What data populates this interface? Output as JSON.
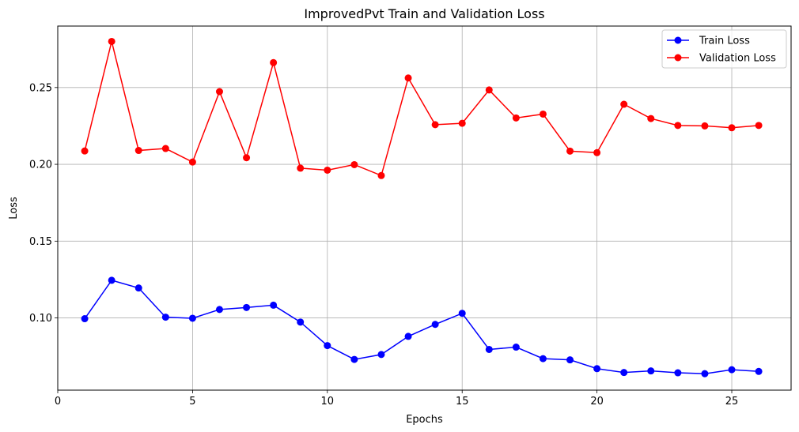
{
  "chart_data": {
    "type": "line",
    "title": "ImprovedPvt Train and Validation Loss",
    "xlabel": "Epochs",
    "ylabel": "Loss",
    "xlim": [
      0,
      27.2
    ],
    "ylim": [
      0.053,
      0.29
    ],
    "xticks": [
      0,
      5,
      10,
      15,
      20,
      25
    ],
    "yticks": [
      0.1,
      0.15,
      0.2,
      0.25
    ],
    "grid": true,
    "legend_position": "top-right",
    "x": [
      1,
      2,
      3,
      4,
      5,
      6,
      7,
      8,
      9,
      10,
      11,
      12,
      13,
      14,
      15,
      16,
      17,
      18,
      19,
      20,
      21,
      22,
      23,
      24,
      25,
      26
    ],
    "series": [
      {
        "name": "Train Loss",
        "color": "#0000ff",
        "values": [
          0.0995,
          0.1245,
          0.1195,
          0.1005,
          0.0998,
          0.1055,
          0.1068,
          0.1083,
          0.0973,
          0.082,
          0.073,
          0.0762,
          0.088,
          0.0958,
          0.103,
          0.0795,
          0.081,
          0.0735,
          0.0727,
          0.067,
          0.0645,
          0.0655,
          0.0643,
          0.0637,
          0.0663,
          0.0652
        ]
      },
      {
        "name": "Validation Loss",
        "color": "#ff0000",
        "values": [
          0.2087,
          0.28,
          0.209,
          0.2103,
          0.2015,
          0.2473,
          0.2043,
          0.2662,
          0.1975,
          0.1962,
          0.1998,
          0.1927,
          0.2562,
          0.2258,
          0.2267,
          0.2484,
          0.2302,
          0.2327,
          0.2086,
          0.2076,
          0.2391,
          0.2298,
          0.2253,
          0.225,
          0.2238,
          0.2253
        ]
      }
    ]
  }
}
